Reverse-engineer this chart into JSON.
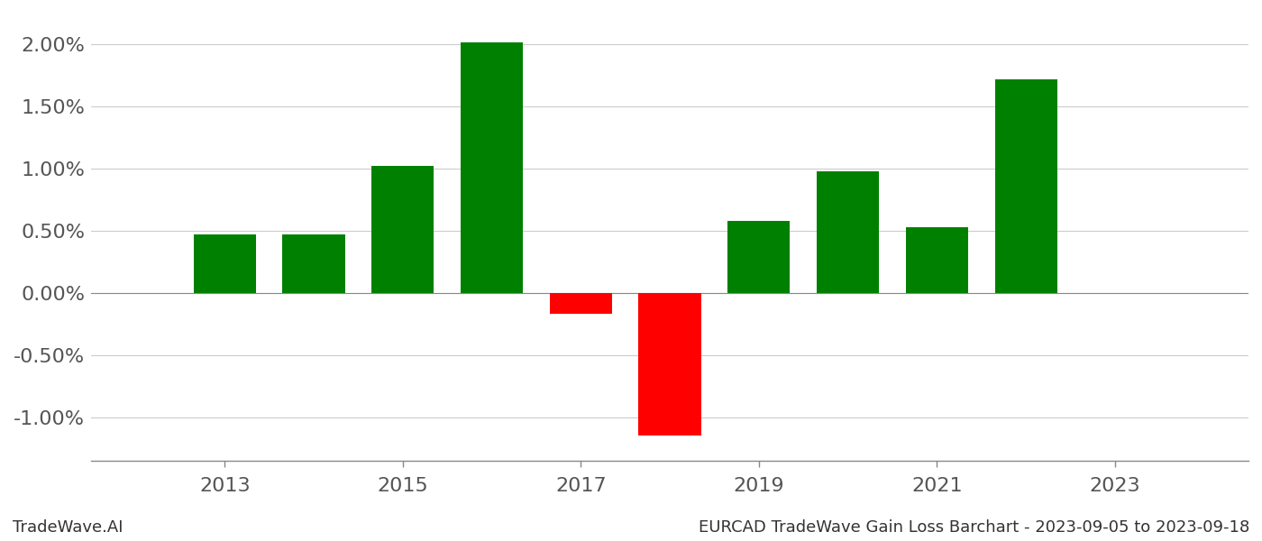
{
  "years": [
    2013,
    2014,
    2015,
    2016,
    2017,
    2018,
    2019,
    2020,
    2021,
    2022
  ],
  "values": [
    0.0047,
    0.0047,
    0.0102,
    0.0202,
    -0.0017,
    -0.0115,
    0.0058,
    0.0098,
    0.0053,
    0.0172
  ],
  "bar_colors": [
    "#008000",
    "#008000",
    "#008000",
    "#008000",
    "#ff0000",
    "#ff0000",
    "#008000",
    "#008000",
    "#008000",
    "#008000"
  ],
  "background_color": "#ffffff",
  "grid_color": "#cccccc",
  "ylim": [
    -0.0135,
    0.0225
  ],
  "yticks": [
    -0.01,
    -0.005,
    0.0,
    0.005,
    0.01,
    0.015,
    0.02
  ],
  "xticks": [
    2013,
    2015,
    2017,
    2019,
    2021,
    2023
  ],
  "xlim": [
    2011.5,
    2024.5
  ],
  "bar_width": 0.7,
  "footer_left": "TradeWave.AI",
  "footer_right": "EURCAD TradeWave Gain Loss Barchart - 2023-09-05 to 2023-09-18",
  "footer_fontsize": 13,
  "tick_fontsize": 16
}
